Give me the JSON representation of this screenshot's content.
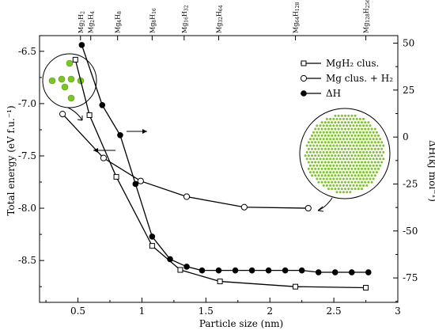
{
  "chart_data": {
    "type": "line",
    "xlabel": "Particle size (nm)",
    "ylabel_left": "Total energy (eV f.u.⁻¹)",
    "ylabel_right": "ΔH(kJ mol⁻¹)",
    "xlim": [
      0.2,
      3.0
    ],
    "ylim_left": [
      -8.9,
      -6.35
    ],
    "ylim_right": [
      -88,
      54
    ],
    "x_ticks": [
      0.5,
      1,
      1.5,
      2,
      2.5,
      3
    ],
    "x_tick_labels": [
      "0.5",
      "1",
      "1.5",
      "2",
      "2.5",
      "3"
    ],
    "y_left_ticks": [
      -6.5,
      -7.0,
      -7.5,
      -8.0,
      -8.5
    ],
    "y_left_tick_labels": [
      "-6.5",
      "-7.0",
      "-7.5",
      "-8.0",
      "-8.5"
    ],
    "y_right_ticks": [
      50,
      25,
      0,
      -25,
      -50,
      -75
    ],
    "y_right_tick_labels": [
      "50",
      "25",
      "0",
      "-25",
      "-50",
      "-75"
    ],
    "top_labels": [
      {
        "x": 0.52,
        "base": "Mg",
        "sub1": "2",
        "mid": "H",
        "sub2": "2"
      },
      {
        "x": 0.6,
        "base": "Mg",
        "sub1": "2",
        "mid": "H",
        "sub2": "4"
      },
      {
        "x": 0.81,
        "base": "Mg",
        "sub1": "4",
        "mid": "H",
        "sub2": "8"
      },
      {
        "x": 1.08,
        "base": "Mg",
        "sub1": "8",
        "mid": "H",
        "sub2": "16"
      },
      {
        "x": 1.33,
        "base": "Mg",
        "sub1": "16",
        "mid": "H",
        "sub2": "32"
      },
      {
        "x": 1.6,
        "base": "Mg",
        "sub1": "32",
        "mid": "H",
        "sub2": "64"
      },
      {
        "x": 2.2,
        "base": "Mg",
        "sub1": "64",
        "mid": "H",
        "sub2": "128"
      },
      {
        "x": 2.75,
        "base": "Mg",
        "sub1": "128",
        "mid": "H",
        "sub2": "256"
      }
    ],
    "series": [
      {
        "name": "MgH₂ clus.",
        "axis": "left",
        "marker": "open-square",
        "x": [
          0.48,
          0.59,
          0.8,
          1.08,
          1.3,
          1.61,
          2.2,
          2.75
        ],
        "y": [
          -6.58,
          -7.11,
          -7.7,
          -8.36,
          -8.59,
          -8.7,
          -8.75,
          -8.76
        ]
      },
      {
        "name": "Mg clus. + H₂",
        "axis": "left",
        "marker": "open-circle",
        "x": [
          0.38,
          0.7,
          0.99,
          1.35,
          1.8,
          2.3
        ],
        "y": [
          -7.1,
          -7.52,
          -7.74,
          -7.89,
          -7.99,
          -8.0
        ]
      },
      {
        "name": "ΔH",
        "axis": "right",
        "marker": "filled-circle",
        "x": [
          0.53,
          0.69,
          0.83,
          0.95,
          1.08,
          1.22,
          1.35,
          1.47,
          1.6,
          1.73,
          1.86,
          1.99,
          2.12,
          2.25,
          2.38,
          2.51,
          2.64,
          2.77
        ],
        "y": [
          49,
          17,
          1,
          -25,
          -53,
          -65,
          -69,
          -71,
          -71,
          -71,
          -71,
          -71,
          -71,
          -71,
          -72,
          -72,
          -72,
          -72
        ]
      }
    ],
    "legend_position": "top-right",
    "grid": false
  },
  "colors": {
    "line": "#000000",
    "particle_green": "#7cc623",
    "particle_dark": "#4f9a12",
    "background": "#ffffff"
  }
}
